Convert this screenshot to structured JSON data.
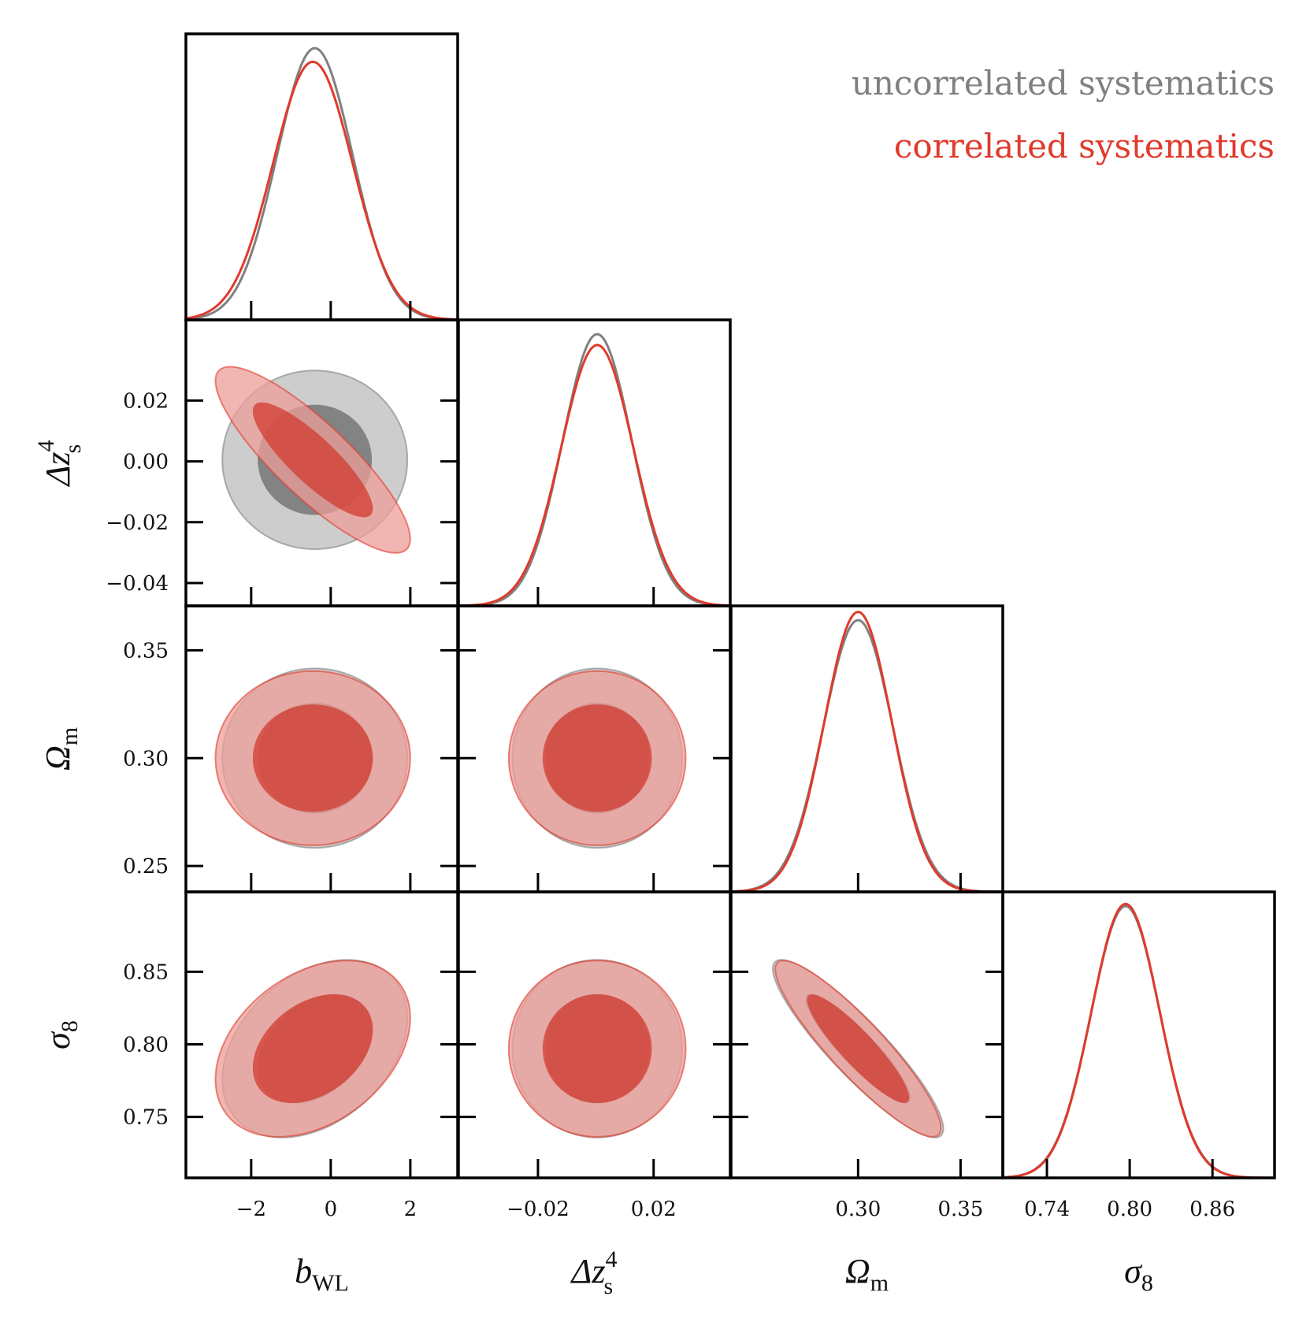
{
  "chart_data": {
    "type": "corner",
    "contour_levels": [
      0.68,
      0.95
    ],
    "legend_placement": "top-right",
    "legend": [
      {
        "label": "uncorrelated systematics",
        "color": "#808080"
      },
      {
        "label": "correlated systematics",
        "color": "#e03a2c"
      }
    ],
    "parameters": [
      {
        "key": "b_WL",
        "label": {
          "main": "b",
          "sub": "WL",
          "sup": ""
        },
        "range": [
          -3.64,
          3.19
        ],
        "ticks": [
          -2,
          0,
          2
        ],
        "tick_labels": [
          "−2",
          "0",
          "2"
        ]
      },
      {
        "key": "dz_s4",
        "label": {
          "main": "Δz",
          "sub": "s",
          "sup": "4"
        },
        "range": [
          -0.0475,
          0.0465
        ],
        "ticks": [
          -0.04,
          -0.02,
          0.0,
          0.02
        ],
        "tick_labels": [
          "−0.04",
          "−0.02",
          "0.00",
          "0.02"
        ],
        "x_ticks": [
          -0.02,
          0.02
        ],
        "x_tick_labels": [
          "−0.02",
          "0.02"
        ]
      },
      {
        "key": "Omega_m",
        "label": {
          "main": "Ω",
          "sub": "m",
          "sup": ""
        },
        "range": [
          0.238,
          0.3706
        ],
        "ticks": [
          0.25,
          0.3,
          0.35
        ],
        "tick_labels": [
          "0.25",
          "0.30",
          "0.35"
        ],
        "x_ticks": [
          0.3,
          0.35
        ],
        "x_tick_labels": [
          "0.30",
          "0.35"
        ]
      },
      {
        "key": "sigma_8",
        "label": {
          "main": "σ",
          "sub": "8",
          "sup": ""
        },
        "range": [
          0.708,
          0.905
        ],
        "ticks": [
          0.75,
          0.8,
          0.85
        ],
        "tick_labels": [
          "0.75",
          "0.80",
          "0.85"
        ],
        "x_ticks": [
          0.74,
          0.8,
          0.86
        ],
        "x_tick_labels": [
          "0.74",
          "0.80",
          "0.86"
        ]
      }
    ],
    "series": [
      {
        "name": "uncorrelated systematics",
        "line_color": "#808080",
        "fill_outer": "#c8c8c8",
        "fill_inner": "#7b7b7b",
        "fill_opacity": 0.9,
        "mean": [
          -0.4,
          0.0005,
          0.3,
          0.797
        ],
        "sigma": [
          0.95,
          0.012,
          0.017,
          0.025
        ],
        "correlation": [
          [
            1,
            0,
            0,
            0.35
          ],
          [
            0,
            1,
            0,
            0
          ],
          [
            0,
            0,
            1,
            -0.9
          ],
          [
            0.35,
            0,
            -0.9,
            1
          ]
        ]
      },
      {
        "name": "correlated systematics",
        "line_color": "#e03a2c",
        "fill_outer": "#ee9e98",
        "fill_inner": "#d23b30",
        "fill_opacity": 0.75,
        "mean": [
          -0.45,
          0.0005,
          0.3,
          0.797
        ],
        "sigma": [
          1.0,
          0.0125,
          0.0165,
          0.0248
        ],
        "correlation": [
          [
            1,
            -0.85,
            0,
            0.35
          ],
          [
            -0.85,
            1,
            0,
            0
          ],
          [
            0,
            0,
            1,
            -0.9
          ],
          [
            0.35,
            0,
            -0.9,
            1
          ]
        ]
      }
    ]
  }
}
